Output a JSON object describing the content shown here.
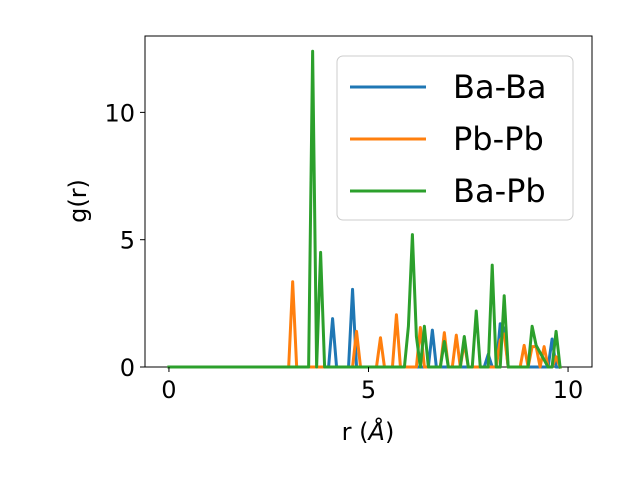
{
  "chart_data": {
    "type": "line",
    "xlabel_main": "r (",
    "xlabel_unit": "Å",
    "xlabel_close": ")",
    "ylabel": "g(r)",
    "xlim": [
      -0.6,
      10.6
    ],
    "ylim": [
      0,
      13
    ],
    "xticks": [
      0,
      5,
      10
    ],
    "yticks": [
      0,
      5,
      10
    ],
    "legend_position": "top-right",
    "grid": false,
    "series": [
      {
        "name": "Ba-Ba",
        "color": "#1f77b4",
        "x": [
          0,
          4.0,
          4.1,
          4.2,
          4.5,
          4.6,
          4.7,
          6.4,
          6.5,
          6.6,
          6.7,
          7.9,
          8.0,
          8.1,
          8.2,
          8.3,
          8.4,
          8.5,
          9.5,
          9.6,
          9.7,
          9.8
        ],
        "y": [
          0,
          0,
          1.9,
          0,
          0,
          3.05,
          0,
          0,
          0,
          1.45,
          0,
          0,
          0.5,
          0,
          0,
          1.7,
          1.5,
          0,
          0,
          1.1,
          0,
          0
        ]
      },
      {
        "name": "Pb-Pb",
        "color": "#ff7f0e",
        "x": [
          0,
          3.0,
          3.1,
          3.2,
          4.6,
          4.7,
          4.8,
          5.2,
          5.3,
          5.4,
          5.6,
          5.7,
          5.8,
          6.2,
          6.3,
          6.4,
          6.8,
          6.9,
          7.0,
          7.1,
          7.2,
          7.3,
          7.4,
          7.5,
          7.6,
          8.2,
          8.3,
          8.4,
          8.5,
          8.8,
          8.9,
          9.0,
          9.1,
          9.2,
          9.3,
          9.4,
          9.5,
          9.6,
          9.7,
          9.8
        ],
        "y": [
          0,
          0,
          3.35,
          0,
          0,
          1.4,
          0,
          0,
          1.15,
          0,
          0,
          2.05,
          0,
          0,
          1.55,
          0,
          0,
          1.35,
          0,
          0,
          1.25,
          0,
          0.95,
          0,
          0,
          0,
          1.05,
          1.3,
          0,
          0,
          0.85,
          0,
          0.8,
          0.8,
          0,
          0.8,
          0,
          0,
          0.4,
          0
        ]
      },
      {
        "name": "Ba-Pb",
        "color": "#2ca02c",
        "x": [
          0,
          3.5,
          3.6,
          3.7,
          3.8,
          3.9,
          5.9,
          6.0,
          6.1,
          6.2,
          6.3,
          6.4,
          6.5,
          6.6,
          6.8,
          6.9,
          7.0,
          7.3,
          7.4,
          7.5,
          7.6,
          7.7,
          7.8,
          7.9,
          8.0,
          8.1,
          8.2,
          8.3,
          8.4,
          8.5,
          8.6,
          8.9,
          9.0,
          9.1,
          9.2,
          9.5,
          9.6,
          9.7,
          9.8
        ],
        "y": [
          0,
          0,
          12.4,
          0,
          4.5,
          0,
          0,
          1.6,
          5.2,
          1.2,
          0,
          1.6,
          0,
          0,
          0,
          1.0,
          0,
          0,
          1.2,
          0,
          0,
          2.2,
          0,
          0,
          0,
          4.0,
          0,
          0,
          2.8,
          0,
          0,
          0,
          0,
          1.6,
          0.85,
          0,
          0,
          1.4,
          0
        ]
      }
    ]
  }
}
